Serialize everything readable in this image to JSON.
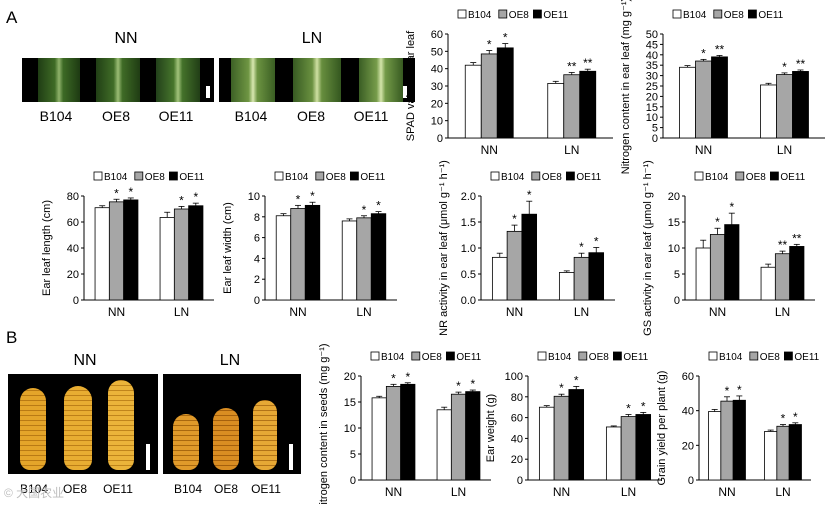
{
  "panels": {
    "a": "A",
    "b": "B"
  },
  "leaf_photos": {
    "nn": {
      "title": "NN",
      "labels": [
        "B104",
        "OE8",
        "OE11"
      ]
    },
    "ln": {
      "title": "LN",
      "labels": [
        "B104",
        "OE8",
        "OE11"
      ]
    }
  },
  "ear_photos": {
    "nn": {
      "title": "NN"
    },
    "ln": {
      "title": "LN"
    },
    "labels": [
      "B104",
      "OE8",
      "OE11"
    ]
  },
  "colors": {
    "B104": "#ffffff",
    "OE8": "#a6a6a6",
    "OE11": "#000000"
  },
  "watermark": "© 大国农业",
  "chart_data": [
    {
      "id": "spad",
      "type": "bar",
      "ylabel": "SPAD value of ear leaf",
      "ylim": [
        0,
        60
      ],
      "yticks": [
        "0",
        "10",
        "20",
        "30",
        "40",
        "50",
        "60"
      ],
      "categories": [
        "NN",
        "LN"
      ],
      "series": [
        {
          "name": "B104",
          "values": [
            42,
            31.5
          ]
        },
        {
          "name": "OE8",
          "values": [
            48.5,
            36.5
          ]
        },
        {
          "name": "OE11",
          "values": [
            52,
            38.5
          ]
        }
      ],
      "errors": [
        [
          1.5,
          1.2
        ],
        [
          2,
          1.3
        ],
        [
          2.5,
          1.2
        ]
      ],
      "sig": [
        [
          "",
          "",
          ""
        ],
        [
          "",
          "",
          ""
        ]
      ],
      "annotations": [
        [
          "",
          "*",
          "*"
        ],
        [
          "",
          "**",
          "**"
        ]
      ]
    },
    {
      "id": "ncontent",
      "type": "bar",
      "ylabel": "Nitrogen content in ear leaf (mg g⁻¹)",
      "ylim": [
        0,
        50
      ],
      "yticks": [
        "0",
        "5",
        "10",
        "15",
        "20",
        "25",
        "30",
        "35",
        "40",
        "45",
        "50"
      ],
      "categories": [
        "NN",
        "LN"
      ],
      "series": [
        {
          "name": "B104",
          "values": [
            34,
            25.5
          ]
        },
        {
          "name": "OE8",
          "values": [
            37,
            30.5
          ]
        },
        {
          "name": "OE11",
          "values": [
            39,
            32
          ]
        }
      ],
      "errors": [
        [
          0.8,
          0.8
        ],
        [
          0.8,
          0.8
        ],
        [
          0.7,
          0.7
        ]
      ],
      "annotations": [
        [
          "",
          "*",
          "**"
        ],
        [
          "",
          "*",
          "**"
        ]
      ]
    },
    {
      "id": "length",
      "type": "bar",
      "ylabel": "Ear leaf length (cm)",
      "ylim": [
        0,
        80
      ],
      "yticks": [
        "0",
        "20",
        "40",
        "60",
        "80"
      ],
      "categories": [
        "NN",
        "LN"
      ],
      "series": [
        {
          "name": "B104",
          "values": [
            71,
            63.5
          ]
        },
        {
          "name": "OE8",
          "values": [
            75.5,
            70
          ]
        },
        {
          "name": "OE11",
          "values": [
            77,
            72.5
          ]
        }
      ],
      "errors": [
        [
          1.5,
          4
        ],
        [
          2,
          2
        ],
        [
          1.5,
          2
        ]
      ],
      "annotations": [
        [
          "",
          "*",
          "*"
        ],
        [
          "",
          "*",
          "*"
        ]
      ]
    },
    {
      "id": "width",
      "type": "bar",
      "ylabel": "Ear leaf width (cm)",
      "ylim": [
        0,
        10
      ],
      "yticks": [
        "0",
        "2",
        "4",
        "6",
        "8",
        "10"
      ],
      "categories": [
        "NN",
        "LN"
      ],
      "series": [
        {
          "name": "B104",
          "values": [
            8.1,
            7.6
          ]
        },
        {
          "name": "OE8",
          "values": [
            8.8,
            7.9
          ]
        },
        {
          "name": "OE11",
          "values": [
            9.1,
            8.3
          ]
        }
      ],
      "errors": [
        [
          0.2,
          0.2
        ],
        [
          0.3,
          0.2
        ],
        [
          0.3,
          0.2
        ]
      ],
      "annotations": [
        [
          "",
          "*",
          "*"
        ],
        [
          "",
          "*",
          "*"
        ]
      ]
    },
    {
      "id": "nr",
      "type": "bar",
      "ylabel": "NR activity in ear leaf (μmol g⁻¹ h⁻¹)",
      "ylim": [
        0,
        2.0
      ],
      "yticks": [
        "0.0",
        "0.5",
        "1.0",
        "1.5",
        "2.0"
      ],
      "categories": [
        "NN",
        "LN"
      ],
      "series": [
        {
          "name": "B104",
          "values": [
            0.82,
            0.53
          ]
        },
        {
          "name": "OE8",
          "values": [
            1.32,
            0.82
          ]
        },
        {
          "name": "OE11",
          "values": [
            1.65,
            0.91
          ]
        }
      ],
      "errors": [
        [
          0.08,
          0.03
        ],
        [
          0.12,
          0.08
        ],
        [
          0.25,
          0.1
        ]
      ],
      "annotations": [
        [
          "",
          "*",
          "*"
        ],
        [
          "",
          "*",
          "*"
        ]
      ]
    },
    {
      "id": "gs",
      "type": "bar",
      "ylabel": "GS activity in ear leaf (μmol g⁻¹ h⁻¹)",
      "ylim": [
        0,
        20
      ],
      "yticks": [
        "0",
        "5",
        "10",
        "15",
        "20"
      ],
      "categories": [
        "NN",
        "LN"
      ],
      "series": [
        {
          "name": "B104",
          "values": [
            10,
            6.3
          ]
        },
        {
          "name": "OE8",
          "values": [
            12.6,
            8.9
          ]
        },
        {
          "name": "OE11",
          "values": [
            14.5,
            10.3
          ]
        }
      ],
      "errors": [
        [
          1.5,
          0.6
        ],
        [
          1.2,
          0.5
        ],
        [
          2.2,
          0.4
        ]
      ],
      "annotations": [
        [
          "",
          "*",
          "*"
        ],
        [
          "",
          "**",
          "**"
        ]
      ]
    },
    {
      "id": "seedn",
      "type": "bar",
      "ylabel": "Nitrogen content in seeds (mg g⁻¹)",
      "ylim": [
        0,
        20
      ],
      "yticks": [
        "0",
        "5",
        "10",
        "15",
        "20"
      ],
      "categories": [
        "NN",
        "LN"
      ],
      "series": [
        {
          "name": "B104",
          "values": [
            15.8,
            13.5
          ]
        },
        {
          "name": "OE8",
          "values": [
            18,
            16.5
          ]
        },
        {
          "name": "OE11",
          "values": [
            18.4,
            17
          ]
        }
      ],
      "errors": [
        [
          0.3,
          0.5
        ],
        [
          0.4,
          0.4
        ],
        [
          0.3,
          0.3
        ]
      ],
      "annotations": [
        [
          "",
          "*",
          "*"
        ],
        [
          "",
          "*",
          "*"
        ]
      ]
    },
    {
      "id": "earweight",
      "type": "bar",
      "ylabel": "Ear weight (g)",
      "ylim": [
        0,
        100
      ],
      "yticks": [
        "0",
        "20",
        "40",
        "60",
        "80",
        "100"
      ],
      "categories": [
        "NN",
        "LN"
      ],
      "series": [
        {
          "name": "B104",
          "values": [
            70,
            51
          ]
        },
        {
          "name": "OE8",
          "values": [
            80.5,
            61
          ]
        },
        {
          "name": "OE11",
          "values": [
            87,
            63
          ]
        }
      ],
      "errors": [
        [
          1.5,
          1
        ],
        [
          2,
          2
        ],
        [
          3,
          2
        ]
      ],
      "annotations": [
        [
          "",
          "*",
          "*"
        ],
        [
          "",
          "*",
          "*"
        ]
      ]
    },
    {
      "id": "yield",
      "type": "bar",
      "ylabel": "Grain yield per plant (g)",
      "ylim": [
        0,
        60
      ],
      "yticks": [
        "0",
        "20",
        "40",
        "60"
      ],
      "categories": [
        "NN",
        "LN"
      ],
      "series": [
        {
          "name": "B104",
          "values": [
            39.5,
            28
          ]
        },
        {
          "name": "OE8",
          "values": [
            45.5,
            31
          ]
        },
        {
          "name": "OE11",
          "values": [
            46,
            32
          ]
        }
      ],
      "errors": [
        [
          1.2,
          0.8
        ],
        [
          2.5,
          1
        ],
        [
          2.5,
          1
        ]
      ],
      "annotations": [
        [
          "",
          "*",
          "*"
        ],
        [
          "",
          "*",
          "*"
        ]
      ]
    }
  ]
}
